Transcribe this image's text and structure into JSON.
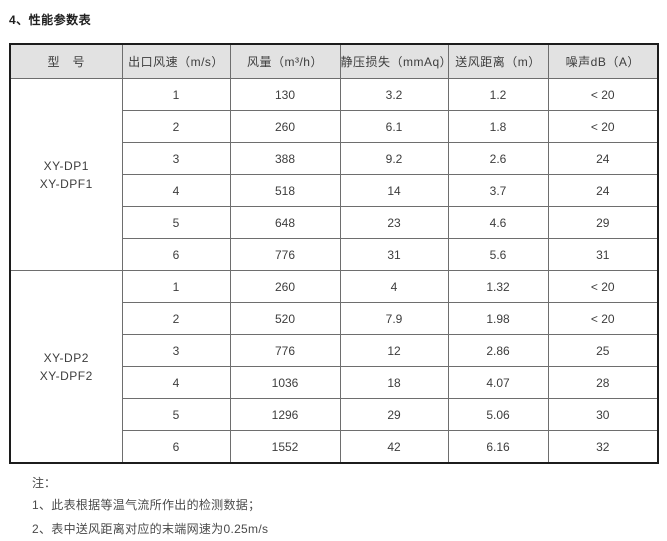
{
  "page": {
    "title": "4、性能参数表"
  },
  "table": {
    "headers": [
      "型　号",
      "出口风速（m/s）",
      "风量（m³/h）",
      "静压损失（mmAq）",
      "送风距离（m）",
      "噪声dB（A）"
    ],
    "groups": [
      {
        "model_lines": [
          "XY-DP1",
          "XY-DPF1"
        ],
        "rows": [
          [
            "1",
            "130",
            "3.2",
            "1.2",
            "< 20"
          ],
          [
            "2",
            "260",
            "6.1",
            "1.8",
            "< 20"
          ],
          [
            "3",
            "388",
            "9.2",
            "2.6",
            "24"
          ],
          [
            "4",
            "518",
            "14",
            "3.7",
            "24"
          ],
          [
            "5",
            "648",
            "23",
            "4.6",
            "29"
          ],
          [
            "6",
            "776",
            "31",
            "5.6",
            "31"
          ]
        ]
      },
      {
        "model_lines": [
          "XY-DP2",
          "XY-DPF2"
        ],
        "rows": [
          [
            "1",
            "260",
            "4",
            "1.32",
            "< 20"
          ],
          [
            "2",
            "520",
            "7.9",
            "1.98",
            "< 20"
          ],
          [
            "3",
            "776",
            "12",
            "2.86",
            "25"
          ],
          [
            "4",
            "1036",
            "18",
            "4.07",
            "28"
          ],
          [
            "5",
            "1296",
            "29",
            "5.06",
            "30"
          ],
          [
            "6",
            "1552",
            "42",
            "6.16",
            "32"
          ]
        ]
      }
    ]
  },
  "notes": {
    "label": "注：",
    "items": [
      "1、此表根据等温气流所作出的检测数据；",
      "2、表中送风距离对应的末端网速为0.25m/s"
    ]
  },
  "colors": {
    "header_background": "#e2e2e2",
    "outer_border": "#1c1c1c",
    "inner_border": "#6e6e6e",
    "text": "#3a3a3a",
    "page_background": "#ffffff"
  }
}
